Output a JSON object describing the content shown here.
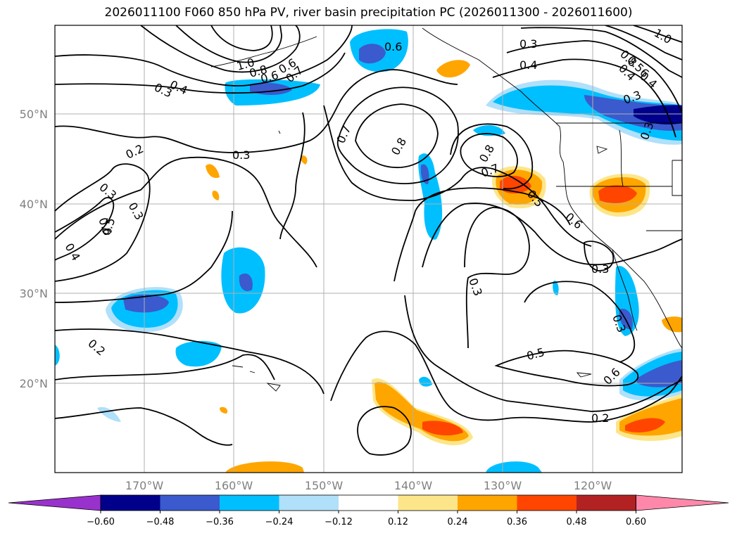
{
  "title": "2026011100 F060 850 hPa PV, river basin precipitation PC (2026011300 - 2026011600)",
  "lat_labels": [
    "50°N",
    "40°N",
    "30°N",
    "20°N"
  ],
  "lon_labels": [
    "170°W",
    "160°W",
    "150°W",
    "140°W",
    "130°W",
    "120°W"
  ],
  "colorbar": {
    "colors": [
      "#9932cc",
      "#00008b",
      "#3a5acd",
      "#00bfff",
      "#b0e0fa",
      "#ffffff",
      "#fde68a",
      "#ffa500",
      "#ff4500",
      "#b22222",
      "#ff88aa"
    ],
    "ticks": [
      "−0.60",
      "−0.48",
      "−0.36",
      "−0.24",
      "−0.12",
      "0.12",
      "0.24",
      "0.36",
      "0.48",
      "0.60"
    ]
  },
  "contour_labels": [
    "0.6",
    "0.3",
    "0.4",
    "1.0",
    "0.8",
    "0.6",
    "0.6",
    "0.7",
    "0.2",
    "0.3",
    "0.3",
    "0.7",
    "0.8",
    "0.8",
    "0.7",
    "0.5",
    "0.6",
    "0.4",
    "0.3",
    "0.6",
    "0.5",
    "0.3",
    "0.4",
    "0.3",
    "0.3",
    "0.3",
    "0.2",
    "0.5",
    "0.6",
    "0.2",
    "0.8",
    "0.56",
    "0.4",
    "0.3",
    "0.3",
    "1.0",
    "0.4"
  ]
}
